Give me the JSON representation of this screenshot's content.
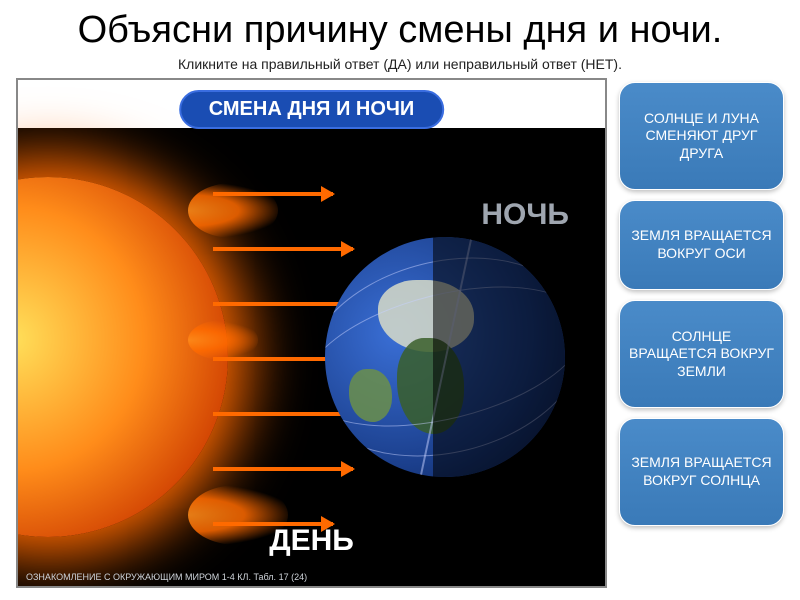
{
  "title": {
    "text": "Объясни причину смены дня и ночи.",
    "fontsize": 38,
    "color": "#000000"
  },
  "subtitle": {
    "text": "Кликните на правильный ответ (ДА) или неправильный ответ (НЕТ).",
    "fontsize": 14,
    "color": "#222222"
  },
  "diagram": {
    "header": {
      "text": "СМЕНА ДНЯ И НОЧИ",
      "fontsize": 20,
      "color": "#ffffff",
      "bg": "#1a4db3",
      "border": "#3a6de0"
    },
    "background_color": "#000000",
    "top_strip_color": "#ffffff",
    "label_night": {
      "text": "НОЧЬ",
      "fontsize": 30,
      "color": "#9fa6b0"
    },
    "label_day": {
      "text": "ДЕНЬ",
      "fontsize": 30,
      "color": "#ffffff"
    },
    "footer": {
      "text": "ОЗНАКОМЛЕНИЕ С ОКРУЖАЮЩИМ МИРОМ 1-4 КЛ.  Табл. 17 (24)",
      "fontsize": 9,
      "color": "#cfd4da"
    },
    "sun": {
      "core_color": "#ffe05a",
      "mid_color": "#ff8c1a",
      "edge_color": "#cc3b00",
      "glow_color": "#ff6a00"
    },
    "earth": {
      "ocean_color": "#1b3f8c",
      "ocean_highlight": "#3a6fd6",
      "land_colors": [
        "#d8dcc8",
        "#3a5f2a",
        "#6b8f4a",
        "#2a4a1a"
      ],
      "orbit_color": "rgba(200,210,255,0.5)"
    },
    "arrows": {
      "color": "#ff6a00",
      "count": 7,
      "length_range": [
        120,
        180
      ],
      "y_positions": [
        0.14,
        0.26,
        0.38,
        0.5,
        0.62,
        0.74,
        0.86
      ]
    }
  },
  "answers": {
    "fontsize": 14,
    "color": "#ffffff",
    "bg": "#4a8bc9",
    "items": [
      {
        "text": "СОЛНЦЕ И ЛУНА СМЕНЯЮТ ДРУГ ДРУГА",
        "min_height": 108
      },
      {
        "text": "ЗЕМЛЯ ВРАЩАЕТСЯ ВОКРУГ ОСИ",
        "min_height": 90
      },
      {
        "text": "СОЛНЦЕ ВРАЩАЕТСЯ ВОКРУГ ЗЕМЛИ",
        "min_height": 108
      },
      {
        "text": "ЗЕМЛЯ ВРАЩАЕТСЯ ВОКРУГ СОЛНЦА",
        "min_height": 108
      }
    ]
  }
}
